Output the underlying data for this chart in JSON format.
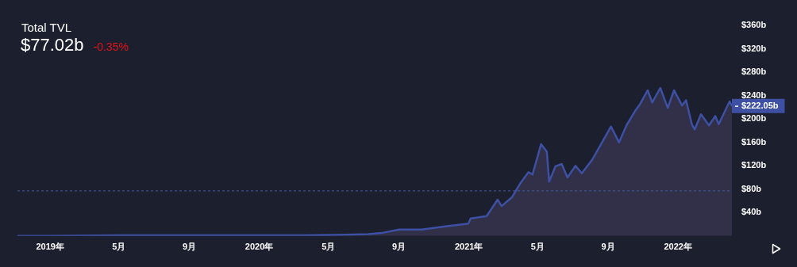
{
  "chart_data": {
    "type": "area",
    "title": "Total TVL",
    "subtitle": "$77.02b",
    "annotations": [
      "-0.35%",
      {
        "text": "$222.05b",
        "x": "2022-04-05",
        "y": 222.05
      }
    ],
    "x": [
      "2018-11-05",
      "2019-01-01",
      "2019-05-01",
      "2019-09-01",
      "2020-01-01",
      "2020-03-15",
      "2020-06-01",
      "2020-07-10",
      "2020-08-01",
      "2020-09-01",
      "2020-10-10",
      "2020-11-18",
      "2020-12-31",
      "2021-01-04",
      "2021-02-01",
      "2021-02-20",
      "2021-02-27",
      "2021-03-17",
      "2021-03-31",
      "2021-04-15",
      "2021-04-22",
      "2021-05-07",
      "2021-05-17",
      "2021-05-21",
      "2021-06-01",
      "2021-06-12",
      "2021-06-22",
      "2021-07-06",
      "2021-07-17",
      "2021-08-04",
      "2021-08-22",
      "2021-09-06",
      "2021-09-20",
      "2021-10-03",
      "2021-10-17",
      "2021-10-27",
      "2021-11-09",
      "2021-11-17",
      "2021-12-01",
      "2021-12-14",
      "2021-12-25",
      "2022-01-08",
      "2022-01-15",
      "2022-01-25",
      "2022-01-30",
      "2022-02-10",
      "2022-02-24",
      "2022-03-07",
      "2022-03-13",
      "2022-04-01",
      "2022-04-05"
    ],
    "series": [
      {
        "color": "#3d50a3",
        "values": [
          0,
          0,
          1,
          1,
          1,
          1,
          2,
          3,
          5,
          11,
          11,
          16,
          21,
          30,
          34,
          62,
          51,
          66,
          89,
          109,
          105,
          157,
          144,
          93,
          119,
          123,
          100,
          120,
          107,
          130,
          161,
          187,
          160,
          189,
          212,
          226,
          249,
          228,
          253,
          219,
          249,
          223,
          232,
          191,
          182,
          208,
          189,
          205,
          191,
          230,
          222.05
        ]
      }
    ],
    "xlim": [
      "2018-11-05",
      "2022-04-05"
    ],
    "xticks": [
      {
        "value": "2019-01-01",
        "label": "2019年"
      },
      {
        "value": "2019-05-01",
        "label": "5月"
      },
      {
        "value": "2019-09-01",
        "label": "9月"
      },
      {
        "value": "2020-01-01",
        "label": "2020年"
      },
      {
        "value": "2020-05-01",
        "label": "5月"
      },
      {
        "value": "2020-09-01",
        "label": "9月"
      },
      {
        "value": "2021-01-01",
        "label": "2021年"
      },
      {
        "value": "2021-05-01",
        "label": "5月"
      },
      {
        "value": "2021-09-01",
        "label": "9月"
      },
      {
        "value": "2022-01-01",
        "label": "2022年"
      }
    ],
    "ylim": [
      0,
      360
    ],
    "yticks": [
      {
        "value": 40,
        "label": "$40b"
      },
      {
        "value": 80,
        "label": "$80b"
      },
      {
        "value": 120,
        "label": "$120b"
      },
      {
        "value": 160,
        "label": "$160b"
      },
      {
        "value": 200,
        "label": "$200b"
      },
      {
        "value": 240,
        "label": "$240b"
      },
      {
        "value": 280,
        "label": "$280b"
      },
      {
        "value": 320,
        "label": "$320b"
      },
      {
        "value": 360,
        "label": "$360b"
      }
    ],
    "ref_lines": [
      {
        "axis": "y",
        "value": 77.02,
        "color": "#4b5aa6",
        "line_style": "dashed"
      }
    ],
    "grid": false,
    "legend": false
  }
}
